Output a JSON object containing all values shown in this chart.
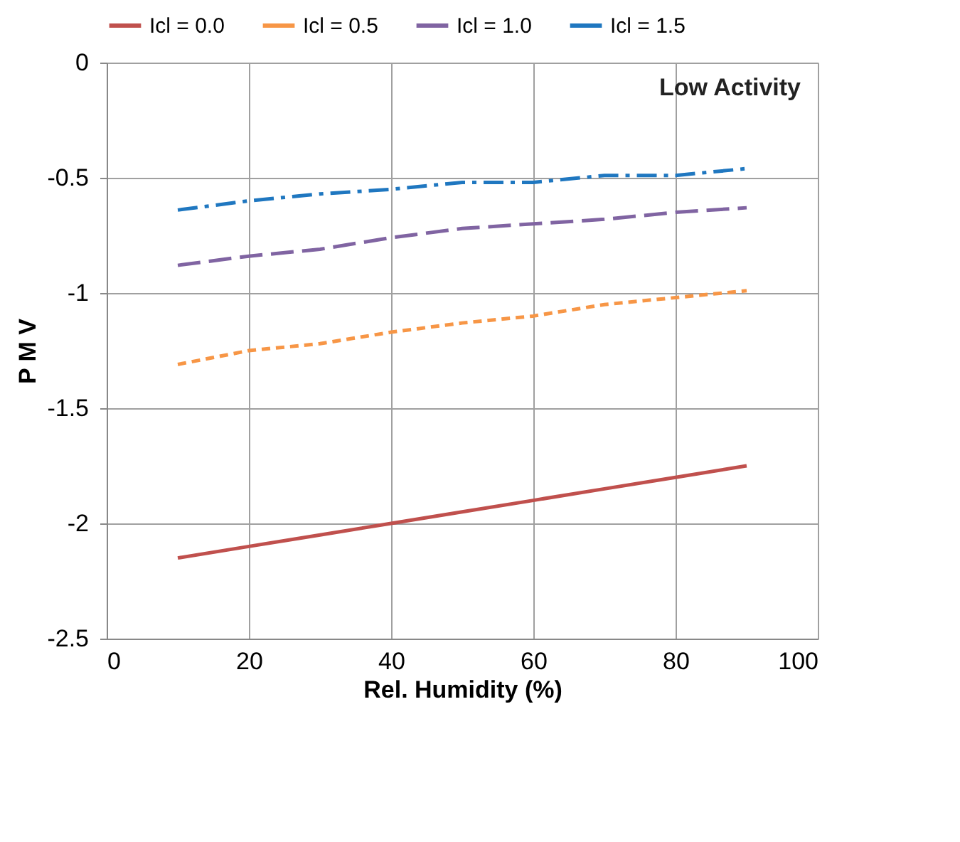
{
  "chart_data": {
    "type": "line",
    "xlabel": "Rel. Humidity (%)",
    "ylabel": "P M V",
    "annotations": [
      "Low Activity"
    ],
    "x": [
      10,
      20,
      30,
      40,
      50,
      60,
      70,
      80,
      90
    ],
    "series": [
      {
        "name": "Icl = 0.0",
        "color": "#c0504d",
        "line_style": "solid",
        "values": [
          -2.15,
          -2.1,
          -2.05,
          -2.0,
          -1.95,
          -1.9,
          -1.85,
          -1.8,
          -1.75
        ]
      },
      {
        "name": "Icl = 0.5",
        "color": "#f79646",
        "line_style": "dashed",
        "values": [
          -1.31,
          -1.25,
          -1.22,
          -1.17,
          -1.13,
          -1.1,
          -1.05,
          -1.02,
          -0.99
        ]
      },
      {
        "name": "Icl = 1.0",
        "color": "#8064a2",
        "line_style": "longdash",
        "values": [
          -0.88,
          -0.84,
          -0.81,
          -0.76,
          -0.72,
          -0.7,
          -0.68,
          -0.65,
          -0.63
        ]
      },
      {
        "name": "Icl = 1.5",
        "color": "#1f77c0",
        "line_style": "dashdot",
        "values": [
          -0.64,
          -0.6,
          -0.57,
          -0.55,
          -0.52,
          -0.52,
          -0.49,
          -0.49,
          -0.46
        ]
      }
    ],
    "xlim": [
      0,
      100
    ],
    "xticks": [
      0,
      20,
      40,
      60,
      80,
      100
    ],
    "ylim": [
      -2.5,
      0
    ],
    "yticks": [
      -2.5,
      -2,
      -1.5,
      -1,
      -0.5,
      0
    ],
    "grid": true,
    "legend": "top",
    "marker": "none"
  }
}
